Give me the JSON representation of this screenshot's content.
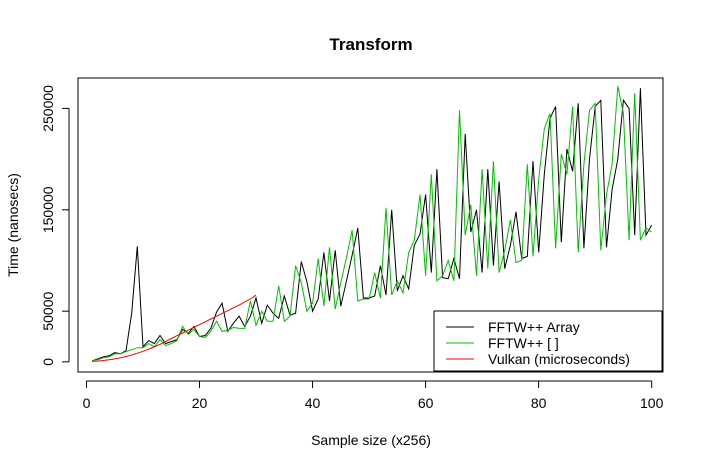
{
  "chart_data": {
    "type": "line",
    "title": "Transform",
    "xlabel": "Sample size (x256)",
    "ylabel": "Time (nanosecs)",
    "xlim": [
      -1.5,
      102
    ],
    "ylim": [
      -10000,
      280000
    ],
    "xticks": [
      0,
      20,
      40,
      60,
      80,
      100
    ],
    "yticks": [
      0,
      50000,
      150000,
      250000
    ],
    "ytick_labels": [
      "0",
      "50000",
      "150000",
      "250000"
    ],
    "grid": false,
    "legend_position": "bottom-right",
    "series": [
      {
        "name": "FFTW++ Array",
        "color": "#000000",
        "x": [
          1,
          2,
          3,
          4,
          5,
          6,
          7,
          8,
          9,
          10,
          11,
          12,
          13,
          14,
          15,
          16,
          17,
          18,
          19,
          20,
          21,
          22,
          23,
          24,
          25,
          26,
          27,
          28,
          29,
          30,
          31,
          32,
          33,
          34,
          35,
          36,
          37,
          38,
          39,
          40,
          41,
          42,
          43,
          44,
          45,
          46,
          47,
          48,
          49,
          50,
          51,
          52,
          53,
          54,
          55,
          56,
          57,
          58,
          59,
          60,
          61,
          62,
          63,
          64,
          65,
          66,
          67,
          68,
          69,
          70,
          71,
          72,
          73,
          74,
          75,
          76,
          77,
          78,
          79,
          80,
          81,
          82,
          83,
          84,
          85,
          86,
          87,
          88,
          89,
          90,
          91,
          92,
          93,
          94,
          95,
          96,
          97,
          98,
          99,
          100
        ],
        "values": [
          1000,
          3000,
          5000,
          6000,
          9000,
          8000,
          11000,
          48000,
          114000,
          15000,
          21000,
          18000,
          26000,
          18000,
          20000,
          22000,
          32000,
          28000,
          35000,
          25000,
          26000,
          33000,
          49000,
          58000,
          30000,
          38000,
          45000,
          35000,
          45000,
          63000,
          38000,
          56000,
          48000,
          43000,
          65000,
          46000,
          48000,
          99000,
          79000,
          50000,
          62000,
          108000,
          60000,
          110000,
          55000,
          80000,
          105000,
          132000,
          63000,
          63000,
          65000,
          95000,
          66000,
          150000,
          70000,
          85000,
          72000,
          115000,
          126000,
          165000,
          88000,
          190000,
          83000,
          82000,
          102000,
          82000,
          225000,
          128000,
          150000,
          88000,
          190000,
          95000,
          178000,
          92000,
          115000,
          148000,
          102000,
          104000,
          198000,
          108000,
          185000,
          240000,
          252000,
          118000,
          210000,
          188000,
          255000,
          112000,
          200000,
          252000,
          258000,
          113000,
          170000,
          200000,
          258000,
          250000,
          125000,
          270000,
          125000,
          135000
        ]
      },
      {
        "name": "FFTW++ [ ]",
        "color": "#00c000",
        "x": [
          1,
          2,
          3,
          4,
          5,
          6,
          7,
          8,
          9,
          10,
          11,
          12,
          13,
          14,
          15,
          16,
          17,
          18,
          19,
          20,
          21,
          22,
          23,
          24,
          25,
          26,
          27,
          28,
          29,
          30,
          31,
          32,
          33,
          34,
          35,
          36,
          37,
          38,
          39,
          40,
          41,
          42,
          43,
          44,
          45,
          46,
          47,
          48,
          49,
          50,
          51,
          52,
          53,
          54,
          55,
          56,
          57,
          58,
          59,
          60,
          61,
          62,
          63,
          64,
          65,
          66,
          67,
          68,
          69,
          70,
          71,
          72,
          73,
          74,
          75,
          76,
          77,
          78,
          79,
          80,
          81,
          82,
          83,
          84,
          85,
          86,
          87,
          88,
          89,
          90,
          91,
          92,
          93,
          94,
          95,
          96,
          97,
          98,
          99,
          100
        ],
        "values": [
          1000,
          2000,
          4000,
          5000,
          8000,
          8000,
          10000,
          12000,
          14000,
          14000,
          18000,
          15000,
          22000,
          16000,
          18000,
          21000,
          35000,
          27000,
          32000,
          25000,
          24000,
          30000,
          40000,
          30000,
          31000,
          34000,
          33000,
          33000,
          60000,
          36000,
          50000,
          40000,
          40000,
          75000,
          40000,
          45000,
          95000,
          78000,
          50000,
          58000,
          102000,
          55000,
          113000,
          52000,
          78000,
          103000,
          130000,
          60000,
          62000,
          62000,
          88000,
          63000,
          152000,
          66000,
          80000,
          68000,
          108000,
          120000,
          165000,
          85000,
          185000,
          80000,
          85000,
          100000,
          80000,
          248000,
          125000,
          155000,
          85000,
          190000,
          92000,
          198000,
          88000,
          110000,
          140000,
          98000,
          100000,
          195000,
          104000,
          180000,
          230000,
          245000,
          112000,
          205000,
          185000,
          252000,
          108000,
          195000,
          248000,
          255000,
          110000,
          165000,
          195000,
          272000,
          245000,
          120000,
          265000,
          120000,
          132000,
          128000
        ]
      },
      {
        "name": "Vulkan (microseconds)",
        "color": "#ff0000",
        "x": [
          1,
          2,
          3,
          4,
          5,
          6,
          7,
          8,
          9,
          10,
          11,
          12,
          13,
          14,
          15,
          16,
          17,
          18,
          19,
          20,
          21,
          22,
          23,
          24,
          25,
          26,
          27,
          28,
          29,
          30
        ],
        "values": [
          500,
          800,
          1300,
          2000,
          2900,
          4000,
          5300,
          6800,
          8500,
          10400,
          12500,
          14800,
          17300,
          20000,
          23000,
          25800,
          28500,
          31200,
          34000,
          36800,
          39500,
          42300,
          45000,
          47800,
          50500,
          53300,
          56000,
          59000,
          62000,
          66000
        ]
      }
    ]
  }
}
